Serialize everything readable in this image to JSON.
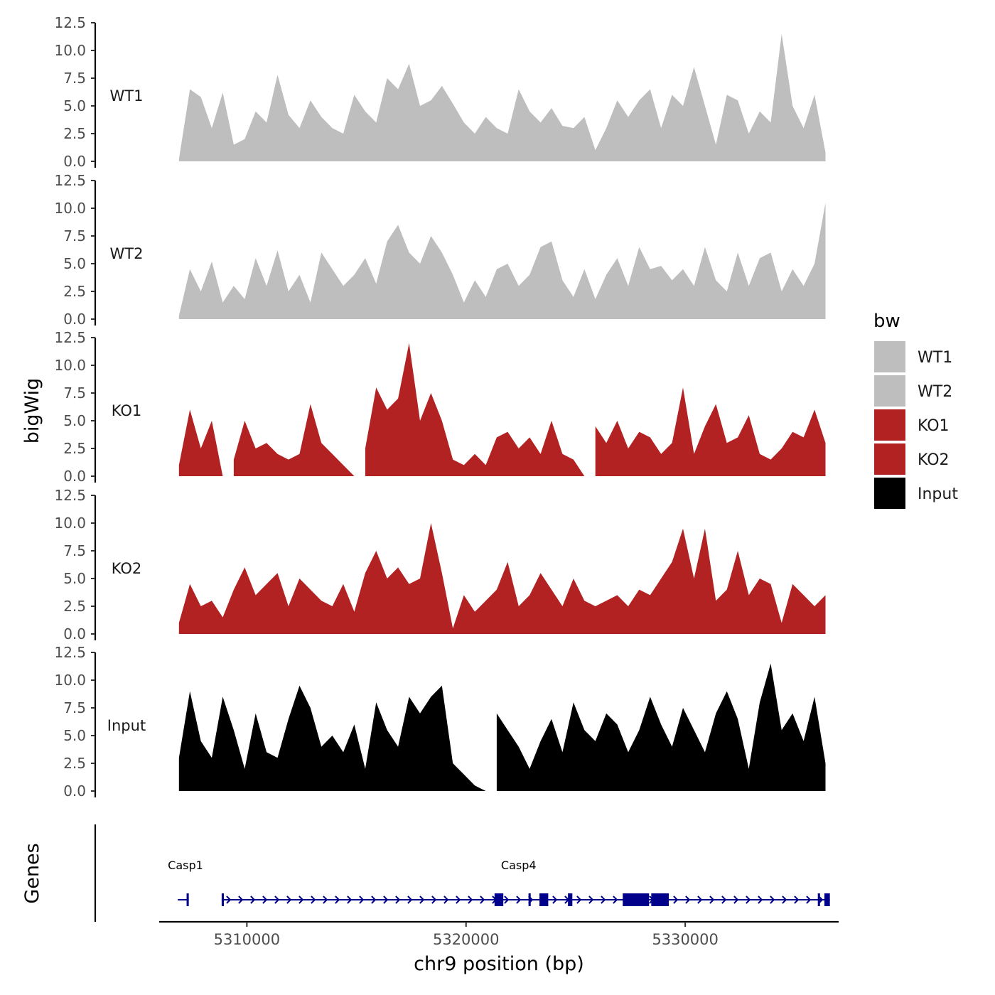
{
  "chart_data": {
    "type": "area",
    "ylabel": "bigWig",
    "xlabel": "chr9 position (bp)",
    "genes_label": "Genes",
    "xlim": [
      5306000,
      5337000
    ],
    "ylim": [
      0,
      12.5
    ],
    "y_ticks": [
      "0.0",
      "2.5",
      "5.0",
      "7.5",
      "10.0",
      "12.5"
    ],
    "y_tick_values": [
      0,
      2.5,
      5,
      7.5,
      10,
      12.5
    ],
    "x_ticks": [
      "5310000",
      "5320000",
      "5330000"
    ],
    "x_tick_values": [
      5310000,
      5320000,
      5330000
    ],
    "legend": {
      "title": "bw",
      "entries": [
        {
          "label": "WT1",
          "color": "#bebebe"
        },
        {
          "label": "WT2",
          "color": "#bebebe"
        },
        {
          "label": "KO1",
          "color": "#b22222"
        },
        {
          "label": "KO2",
          "color": "#b22222"
        },
        {
          "label": "Input",
          "color": "#000000"
        }
      ]
    },
    "series": [
      {
        "name": "WT1",
        "color": "#bebebe",
        "x": [
          5306900,
          5307400,
          5307900,
          5308400,
          5308900,
          5309400,
          5309900,
          5310400,
          5310900,
          5311400,
          5311900,
          5312400,
          5312900,
          5313400,
          5313900,
          5314400,
          5314900,
          5315400,
          5315900,
          5316400,
          5316900,
          5317400,
          5317900,
          5318400,
          5318900,
          5319400,
          5319900,
          5320400,
          5320900,
          5321400,
          5321900,
          5322400,
          5322900,
          5323400,
          5323900,
          5324400,
          5324900,
          5325400,
          5325900,
          5326400,
          5326900,
          5327400,
          5327900,
          5328400,
          5328900,
          5329400,
          5329900,
          5330400,
          5330900,
          5331400,
          5331900,
          5332400,
          5332900,
          5333400,
          5333900,
          5334400,
          5334900,
          5335400,
          5335900,
          5336400
        ],
        "values": [
          0.2,
          6.5,
          5.8,
          3.0,
          6.2,
          1.5,
          2.0,
          4.5,
          3.5,
          7.8,
          4.2,
          3.0,
          5.5,
          4.0,
          3.0,
          2.5,
          6.0,
          4.5,
          3.5,
          7.5,
          6.5,
          8.8,
          5.0,
          5.5,
          6.8,
          5.2,
          3.5,
          2.5,
          4.0,
          3.0,
          2.5,
          6.5,
          4.5,
          3.5,
          4.8,
          3.2,
          3.0,
          4.0,
          1.0,
          3.0,
          5.5,
          4.0,
          5.5,
          6.5,
          3.0,
          6.0,
          5.0,
          8.5,
          5.0,
          1.5,
          6.0,
          5.5,
          2.5,
          4.5,
          3.5,
          11.5,
          5.0,
          3.0,
          6.0,
          0.8
        ]
      },
      {
        "name": "WT2",
        "color": "#bebebe",
        "x": [
          5306900,
          5307400,
          5307900,
          5308400,
          5308900,
          5309400,
          5309900,
          5310400,
          5310900,
          5311400,
          5311900,
          5312400,
          5312900,
          5313400,
          5313900,
          5314400,
          5314900,
          5315400,
          5315900,
          5316400,
          5316900,
          5317400,
          5317900,
          5318400,
          5318900,
          5319400,
          5319900,
          5320400,
          5320900,
          5321400,
          5321900,
          5322400,
          5322900,
          5323400,
          5323900,
          5324400,
          5324900,
          5325400,
          5325900,
          5326400,
          5326900,
          5327400,
          5327900,
          5328400,
          5328900,
          5329400,
          5329900,
          5330400,
          5330900,
          5331400,
          5331900,
          5332400,
          5332900,
          5333400,
          5333900,
          5334400,
          5334900,
          5335400,
          5335900,
          5336400
        ],
        "values": [
          0.3,
          4.5,
          2.5,
          5.2,
          1.5,
          3.0,
          1.8,
          5.5,
          3.0,
          6.2,
          2.5,
          4.0,
          1.5,
          6.0,
          4.5,
          3.0,
          4.0,
          5.5,
          3.2,
          7.0,
          8.5,
          6.0,
          5.0,
          7.5,
          6.0,
          4.0,
          1.5,
          3.5,
          2.0,
          4.5,
          5.0,
          3.0,
          4.0,
          6.5,
          7.0,
          3.5,
          2.0,
          4.5,
          1.8,
          4.0,
          5.5,
          3.0,
          6.5,
          4.5,
          4.8,
          3.5,
          4.5,
          3.0,
          6.5,
          3.5,
          2.5,
          6.0,
          3.0,
          5.5,
          6.0,
          2.5,
          4.5,
          3.0,
          5.0,
          10.5
        ]
      },
      {
        "name": "KO1",
        "color": "#b22222",
        "x": [
          5306900,
          5307400,
          5307900,
          5308400,
          5308900,
          5309400,
          5309900,
          5310400,
          5310900,
          5311400,
          5311900,
          5312400,
          5312900,
          5313400,
          5313900,
          5314400,
          5314900,
          5315400,
          5315900,
          5316400,
          5316900,
          5317400,
          5317900,
          5318400,
          5318900,
          5319400,
          5319900,
          5320400,
          5320900,
          5321400,
          5321900,
          5322400,
          5322900,
          5323400,
          5323900,
          5324400,
          5324900,
          5325400,
          5325900,
          5326400,
          5326900,
          5327400,
          5327900,
          5328400,
          5328900,
          5329400,
          5329900,
          5330400,
          5330900,
          5331400,
          5331900,
          5332400,
          5332900,
          5333400,
          5333900,
          5334400,
          5334900,
          5335400,
          5335900,
          5336400
        ],
        "values": [
          1.0,
          6.0,
          2.5,
          5.0,
          0,
          1.5,
          5.0,
          2.5,
          3.0,
          2.0,
          1.5,
          2.0,
          6.5,
          3.0,
          2.0,
          1.0,
          0,
          2.5,
          8.0,
          6.0,
          7.0,
          12.0,
          5.0,
          7.5,
          5.0,
          1.5,
          1.0,
          2.0,
          1.0,
          3.5,
          4.0,
          2.5,
          3.5,
          2.0,
          5.0,
          2.0,
          1.5,
          0,
          4.5,
          3.0,
          5.0,
          2.5,
          4.0,
          3.5,
          2.0,
          3.0,
          8.0,
          2.0,
          4.5,
          6.5,
          3.0,
          3.5,
          5.5,
          2.0,
          1.5,
          2.5,
          4.0,
          3.5,
          6.0,
          3.0
        ]
      },
      {
        "name": "KO2",
        "color": "#b22222",
        "x": [
          5306900,
          5307400,
          5307900,
          5308400,
          5308900,
          5309400,
          5309900,
          5310400,
          5310900,
          5311400,
          5311900,
          5312400,
          5312900,
          5313400,
          5313900,
          5314400,
          5314900,
          5315400,
          5315900,
          5316400,
          5316900,
          5317400,
          5317900,
          5318400,
          5318900,
          5319400,
          5319900,
          5320400,
          5320900,
          5321400,
          5321900,
          5322400,
          5322900,
          5323400,
          5323900,
          5324400,
          5324900,
          5325400,
          5325900,
          5326400,
          5326900,
          5327400,
          5327900,
          5328400,
          5328900,
          5329400,
          5329900,
          5330400,
          5330900,
          5331400,
          5331900,
          5332400,
          5332900,
          5333400,
          5333900,
          5334400,
          5334900,
          5335400,
          5335900,
          5336400
        ],
        "values": [
          1.0,
          4.5,
          2.5,
          3.0,
          1.5,
          4.0,
          6.0,
          3.5,
          4.5,
          5.5,
          2.5,
          5.0,
          4.0,
          3.0,
          2.5,
          4.5,
          2.0,
          5.5,
          7.5,
          5.0,
          6.0,
          4.5,
          5.0,
          10.0,
          5.5,
          0.5,
          3.5,
          2.0,
          3.0,
          4.0,
          6.5,
          2.5,
          3.5,
          5.5,
          4.0,
          2.5,
          5.0,
          3.0,
          2.5,
          3.0,
          3.5,
          2.5,
          4.0,
          3.5,
          5.0,
          6.5,
          9.5,
          5.0,
          9.5,
          3.0,
          4.0,
          7.5,
          3.5,
          5.0,
          4.5,
          1.0,
          4.5,
          3.5,
          2.5,
          3.5
        ]
      },
      {
        "name": "Input",
        "color": "#000000",
        "x": [
          5306900,
          5307400,
          5307900,
          5308400,
          5308900,
          5309400,
          5309900,
          5310400,
          5310900,
          5311400,
          5311900,
          5312400,
          5312900,
          5313400,
          5313900,
          5314400,
          5314900,
          5315400,
          5315900,
          5316400,
          5316900,
          5317400,
          5317900,
          5318400,
          5318900,
          5319400,
          5319900,
          5320400,
          5320900,
          5321400,
          5321900,
          5322400,
          5322900,
          5323400,
          5323900,
          5324400,
          5324900,
          5325400,
          5325900,
          5326400,
          5326900,
          5327400,
          5327900,
          5328400,
          5328900,
          5329400,
          5329900,
          5330400,
          5330900,
          5331400,
          5331900,
          5332400,
          5332900,
          5333400,
          5333900,
          5334400,
          5334900,
          5335400,
          5335900,
          5336400
        ],
        "values": [
          3.0,
          9.0,
          4.5,
          3.0,
          8.5,
          5.5,
          2.0,
          7.0,
          3.5,
          3.0,
          6.5,
          9.5,
          7.5,
          4.0,
          5.0,
          3.5,
          6.0,
          2.0,
          8.0,
          5.5,
          4.0,
          8.5,
          7.0,
          8.5,
          9.5,
          2.5,
          1.5,
          0.5,
          0,
          7.0,
          5.5,
          4.0,
          2.0,
          4.5,
          6.5,
          3.5,
          8.0,
          5.5,
          4.5,
          7.0,
          6.0,
          3.5,
          5.5,
          8.5,
          6.0,
          4.0,
          7.5,
          5.5,
          3.5,
          7.0,
          9.0,
          6.5,
          2.0,
          8.0,
          11.5,
          5.5,
          7.0,
          4.5,
          8.5,
          2.5
        ]
      }
    ],
    "genes": [
      {
        "name": "Casp1",
        "label_x": 5307200,
        "strand": "+",
        "start": 5306850,
        "end": 5307350,
        "exons": [
          [
            5307250,
            5307350
          ]
        ]
      },
      {
        "name": "Casp4",
        "label_x": 5322400,
        "strand": "+",
        "start": 5308850,
        "end": 5336600,
        "exons": [
          [
            5308850,
            5308950
          ],
          [
            5321300,
            5321700
          ],
          [
            5322850,
            5322950
          ],
          [
            5323350,
            5323750
          ],
          [
            5324650,
            5324850
          ],
          [
            5327150,
            5328350
          ],
          [
            5328450,
            5329250
          ],
          [
            5336050,
            5336150
          ],
          [
            5336350,
            5336600
          ]
        ]
      }
    ]
  }
}
